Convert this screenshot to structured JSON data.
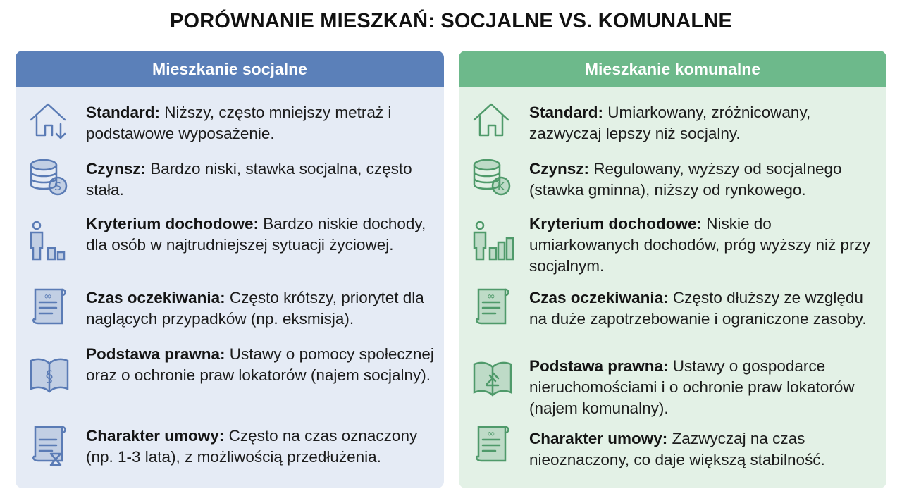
{
  "title": "PORÓWNANIE MIESZKAŃ: SOCJALNE VS. KOMUNALNE",
  "colors": {
    "social_header": "#5b80b9",
    "social_bg": "#e5ebf5",
    "social_icon": "#5a7bb5",
    "communal_header": "#6db98b",
    "communal_bg": "#e3f1e6",
    "communal_icon": "#4f9a6a"
  },
  "social": {
    "header": "Mieszkanie socjalne",
    "items": [
      {
        "icon": "house-down-arrow-icon",
        "label": "Standard:",
        "text": " Niższy, często mniejszy metraż i podstawowe wyposażenie."
      },
      {
        "icon": "coins-dollar-icon",
        "label": "Czynsz:",
        "text": " Bardzo niski, stawka socjalna, często stała."
      },
      {
        "icon": "person-low-bars-icon",
        "label": "Kryterium dochodowe:",
        "text": " Bardzo niskie dochody, dla osób w najtrudniejszej sytuacji życiowej."
      },
      {
        "icon": "clock-icon",
        "label": "Czas oczekiwania:",
        "text": " Często krótszy, priorytet dla naglących przypadków (np. eksmisja)."
      },
      {
        "icon": "law-book-paragraph-icon",
        "label": "Podstawa prawna:",
        "text": " Ustawy o pomocy społecznej oraz o ochronie praw lokatorów (najem socjalny)."
      },
      {
        "icon": "contract-hourglass-icon",
        "label": "Charakter umowy:",
        "text": " Często na czas oznaczony (np. 1-3 lata), z możliwością przedłużenia."
      }
    ]
  },
  "communal": {
    "header": "Mieszkanie komunalne",
    "items": [
      {
        "icon": "house-icon",
        "label": "Standard:",
        "text": " Umiarkowany, zróżnicowany, zazwyczaj lepszy niż socjalny."
      },
      {
        "icon": "coins-k-icon",
        "label": "Czynsz:",
        "text": " Regulowany, wyższy od socjalnego (stawka gminna), niższy od rynkowego."
      },
      {
        "icon": "person-rising-bars-icon",
        "label": "Kryterium dochodowe:",
        "text": " Niskie do umiarkowanych dochodów, próg wyższy niż przy socjalnym."
      },
      {
        "icon": "clock-icon",
        "label": "Czas oczekiwania:",
        "text": " Często dłuższy ze względu na duże zapotrzebowanie i ograniczone zasoby."
      },
      {
        "icon": "law-book-gavel-icon",
        "label": "Podstawa prawna:",
        "text": " Ustawy o gospodarce nieruchomościami i o ochronie praw lokatorów (najem komunalny)."
      },
      {
        "icon": "contract-infinity-icon",
        "label": "Charakter umowy:",
        "text": " Zazwyczaj na czas nieoznaczony, co daje większą stabilność."
      }
    ]
  }
}
